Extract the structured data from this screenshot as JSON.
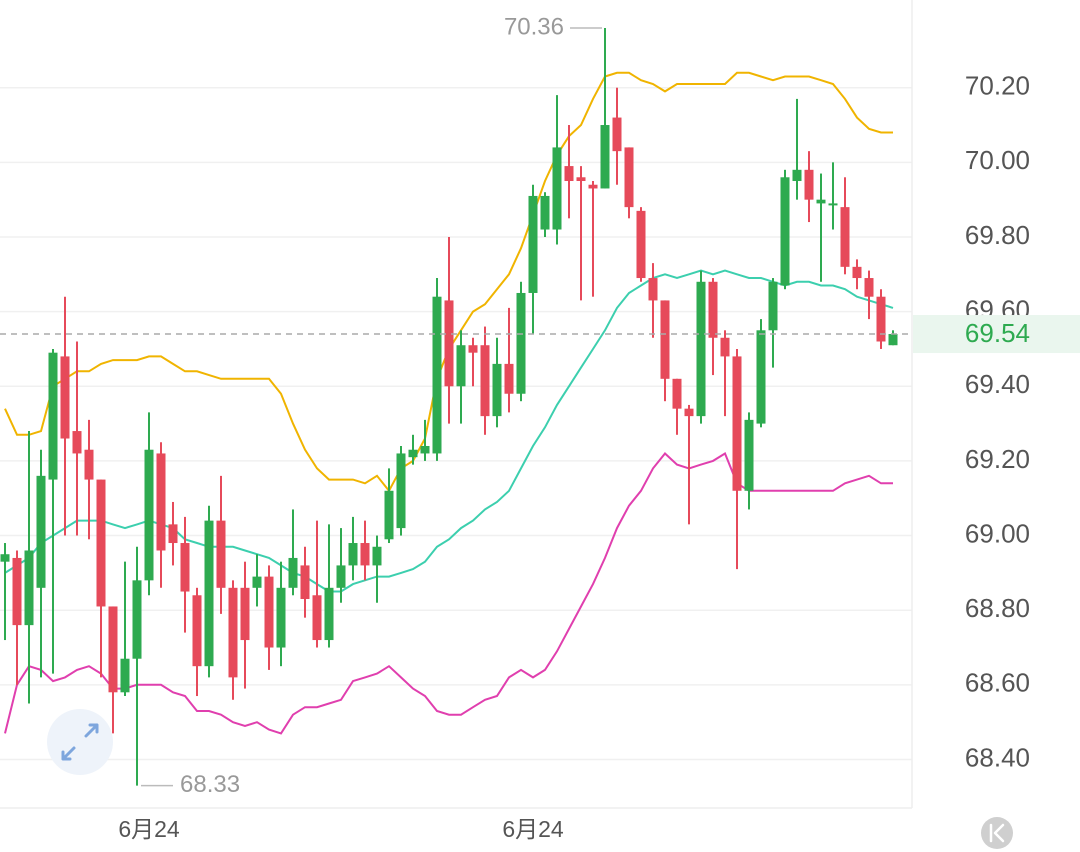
{
  "chart_data": {
    "type": "candlestick",
    "categories": [
      null,
      null,
      null,
      null,
      null,
      null,
      null,
      null,
      null,
      null,
      null,
      null,
      "6月24",
      null,
      null,
      null,
      null,
      null,
      null,
      null,
      null,
      null,
      null,
      null,
      null,
      null,
      null,
      null,
      null,
      null,
      null,
      null,
      null,
      null,
      null,
      null,
      null,
      null,
      null,
      null,
      null,
      null,
      null,
      null,
      "6月24",
      null,
      null,
      null,
      null,
      null,
      null,
      null,
      null,
      null,
      null,
      null,
      null,
      null,
      null,
      null,
      null,
      null,
      null,
      null,
      null,
      null,
      null,
      null,
      null,
      null,
      null,
      null,
      null,
      null,
      null
    ],
    "open": [
      68.93,
      68.94,
      68.76,
      68.86,
      69.15,
      69.48,
      69.28,
      69.23,
      69.15,
      68.81,
      68.58,
      68.67,
      68.88,
      69.22,
      69.03,
      68.98,
      68.84,
      68.65,
      69.04,
      68.86,
      68.86,
      68.86,
      68.89,
      68.7,
      68.86,
      68.92,
      68.84,
      68.72,
      68.86,
      68.92,
      68.98,
      68.92,
      68.99,
      69.02,
      69.21,
      69.22,
      69.22,
      69.63,
      69.4,
      69.51,
      69.51,
      69.32,
      69.46,
      69.38,
      69.65,
      69.82,
      69.82,
      69.99,
      69.96,
      69.94,
      69.93,
      70.12,
      70.04,
      69.87,
      69.69,
      69.63,
      69.42,
      69.34,
      69.32,
      69.68,
      69.53,
      69.48,
      69.12,
      69.3,
      69.55,
      69.67,
      69.95,
      69.98,
      69.89,
      69.89,
      69.88,
      69.72,
      69.69,
      69.64,
      69.51
    ],
    "high": [
      68.98,
      68.96,
      69.28,
      69.23,
      69.5,
      69.64,
      69.52,
      69.31,
      69.15,
      68.81,
      68.93,
      68.97,
      69.33,
      69.25,
      69.09,
      69.05,
      68.86,
      69.08,
      69.16,
      68.88,
      68.93,
      68.95,
      68.92,
      68.93,
      69.07,
      68.97,
      69.04,
      69.03,
      69.02,
      69.05,
      69.04,
      69.0,
      69.18,
      69.24,
      69.27,
      69.31,
      69.69,
      69.8,
      69.55,
      69.53,
      69.56,
      69.53,
      69.61,
      69.68,
      69.94,
      69.92,
      70.18,
      70.1,
      69.99,
      69.95,
      70.36,
      70.2,
      70.04,
      69.88,
      69.73,
      69.63,
      69.42,
      69.35,
      69.71,
      69.69,
      69.55,
      69.5,
      69.33,
      69.58,
      69.69,
      69.98,
      70.17,
      70.03,
      69.97,
      70.0,
      69.96,
      69.74,
      69.71,
      69.66,
      69.55
    ],
    "low": [
      68.72,
      68.6,
      68.55,
      68.62,
      68.63,
      69.0,
      69.0,
      68.99,
      68.62,
      68.47,
      68.57,
      68.33,
      68.84,
      68.86,
      68.92,
      68.74,
      68.57,
      68.62,
      68.79,
      68.56,
      68.59,
      68.81,
      68.64,
      68.65,
      68.84,
      68.78,
      68.7,
      68.7,
      68.82,
      68.88,
      68.88,
      68.82,
      68.98,
      69.0,
      69.19,
      69.2,
      69.2,
      69.3,
      69.3,
      69.4,
      69.27,
      69.29,
      69.33,
      69.36,
      69.54,
      69.8,
      69.78,
      69.85,
      69.63,
      69.64,
      69.93,
      69.94,
      69.85,
      69.68,
      69.53,
      69.36,
      69.27,
      69.03,
      69.3,
      69.43,
      69.32,
      68.91,
      69.07,
      69.29,
      69.45,
      69.66,
      69.9,
      69.84,
      69.68,
      69.82,
      69.7,
      69.66,
      69.58,
      69.5,
      69.51
    ],
    "close": [
      68.95,
      68.76,
      68.96,
      69.16,
      69.49,
      69.26,
      69.22,
      69.15,
      68.81,
      68.58,
      68.67,
      68.88,
      69.23,
      68.96,
      68.98,
      68.85,
      68.65,
      69.04,
      68.86,
      68.62,
      68.72,
      68.89,
      68.7,
      68.86,
      68.94,
      68.83,
      68.72,
      68.86,
      68.92,
      68.98,
      68.92,
      68.97,
      69.12,
      69.22,
      69.23,
      69.24,
      69.64,
      69.4,
      69.51,
      69.49,
      69.32,
      69.46,
      69.38,
      69.65,
      69.91,
      69.91,
      70.04,
      69.95,
      69.95,
      69.93,
      70.1,
      70.03,
      69.88,
      69.69,
      69.63,
      69.42,
      69.34,
      69.32,
      69.68,
      69.53,
      69.48,
      69.12,
      69.31,
      69.55,
      69.68,
      69.96,
      69.98,
      69.9,
      69.9,
      69.89,
      69.72,
      69.69,
      69.64,
      69.52,
      69.54
    ],
    "up_color": "#2eaa50",
    "down_color": "#e64a5a",
    "bands": [
      {
        "color": "#f0b400",
        "values": [
          69.34,
          69.27,
          69.27,
          69.28,
          69.4,
          69.42,
          69.44,
          69.44,
          69.46,
          69.47,
          69.47,
          69.47,
          69.48,
          69.48,
          69.46,
          69.44,
          69.44,
          69.43,
          69.42,
          69.42,
          69.42,
          69.42,
          69.42,
          69.38,
          69.3,
          69.23,
          69.18,
          69.15,
          69.15,
          69.15,
          69.14,
          69.16,
          69.12,
          69.18,
          69.2,
          69.26,
          69.42,
          69.5,
          69.55,
          69.6,
          69.62,
          69.66,
          69.7,
          69.77,
          69.86,
          69.95,
          70.02,
          70.07,
          70.1,
          70.17,
          70.23,
          70.24,
          70.24,
          70.22,
          70.21,
          70.19,
          70.21,
          70.21,
          70.21,
          70.21,
          70.21,
          70.24,
          70.24,
          70.23,
          70.22,
          70.23,
          70.23,
          70.23,
          70.22,
          70.21,
          70.17,
          70.12,
          70.09,
          70.08,
          70.08
        ]
      },
      {
        "color": "#3ccfae",
        "values": [
          68.9,
          68.92,
          68.94,
          68.98,
          69.0,
          69.02,
          69.04,
          69.04,
          69.04,
          69.03,
          69.02,
          69.03,
          69.04,
          69.03,
          69.02,
          68.99,
          68.98,
          68.97,
          68.97,
          68.97,
          68.96,
          68.95,
          68.94,
          68.92,
          68.9,
          68.89,
          68.87,
          68.85,
          68.85,
          68.87,
          68.88,
          68.89,
          68.89,
          68.9,
          68.91,
          68.93,
          68.97,
          68.99,
          69.02,
          69.04,
          69.07,
          69.09,
          69.12,
          69.18,
          69.24,
          69.29,
          69.35,
          69.4,
          69.45,
          69.5,
          69.55,
          69.61,
          69.65,
          69.67,
          69.69,
          69.7,
          69.69,
          69.7,
          69.71,
          69.7,
          69.71,
          69.7,
          69.69,
          69.69,
          69.68,
          69.67,
          69.68,
          69.68,
          69.67,
          69.67,
          69.66,
          69.64,
          69.63,
          69.62,
          69.61
        ]
      },
      {
        "color": "#e03fae",
        "values": [
          68.47,
          68.6,
          68.65,
          68.64,
          68.61,
          68.62,
          68.64,
          68.65,
          68.63,
          68.59,
          68.59,
          68.6,
          68.6,
          68.6,
          68.58,
          68.57,
          68.53,
          68.53,
          68.52,
          68.5,
          68.49,
          68.5,
          68.48,
          68.47,
          68.52,
          68.54,
          68.54,
          68.55,
          68.56,
          68.61,
          68.62,
          68.63,
          68.65,
          68.62,
          68.59,
          68.57,
          68.53,
          68.52,
          68.52,
          68.54,
          68.56,
          68.57,
          68.62,
          68.64,
          68.62,
          68.64,
          68.69,
          68.75,
          68.81,
          68.87,
          68.94,
          69.02,
          69.08,
          69.12,
          69.18,
          69.22,
          69.19,
          69.18,
          69.19,
          69.2,
          69.22,
          69.14,
          69.12,
          69.12,
          69.12,
          69.12,
          69.12,
          69.12,
          69.12,
          69.12,
          69.14,
          69.15,
          69.16,
          69.14,
          69.14
        ]
      }
    ],
    "high_mark": 70.36,
    "low_mark": 68.33,
    "last_price": 69.54,
    "last_price_color": "#2eaa50",
    "ylim": [
      68.27,
      70.435
    ],
    "yticks": [
      {
        "value": 68.4,
        "label": "68.40"
      },
      {
        "value": 68.6,
        "label": "68.60"
      },
      {
        "value": 68.8,
        "label": "68.80"
      },
      {
        "value": 69.0,
        "label": "69.00"
      },
      {
        "value": 69.2,
        "label": "69.20"
      },
      {
        "value": 69.4,
        "label": "69.40"
      },
      {
        "value": 69.6,
        "label": "69.60"
      },
      {
        "value": 69.8,
        "label": "69.80"
      },
      {
        "value": 70.0,
        "label": "70.00"
      },
      {
        "value": 70.2,
        "label": "70.20"
      }
    ],
    "grid": true
  }
}
